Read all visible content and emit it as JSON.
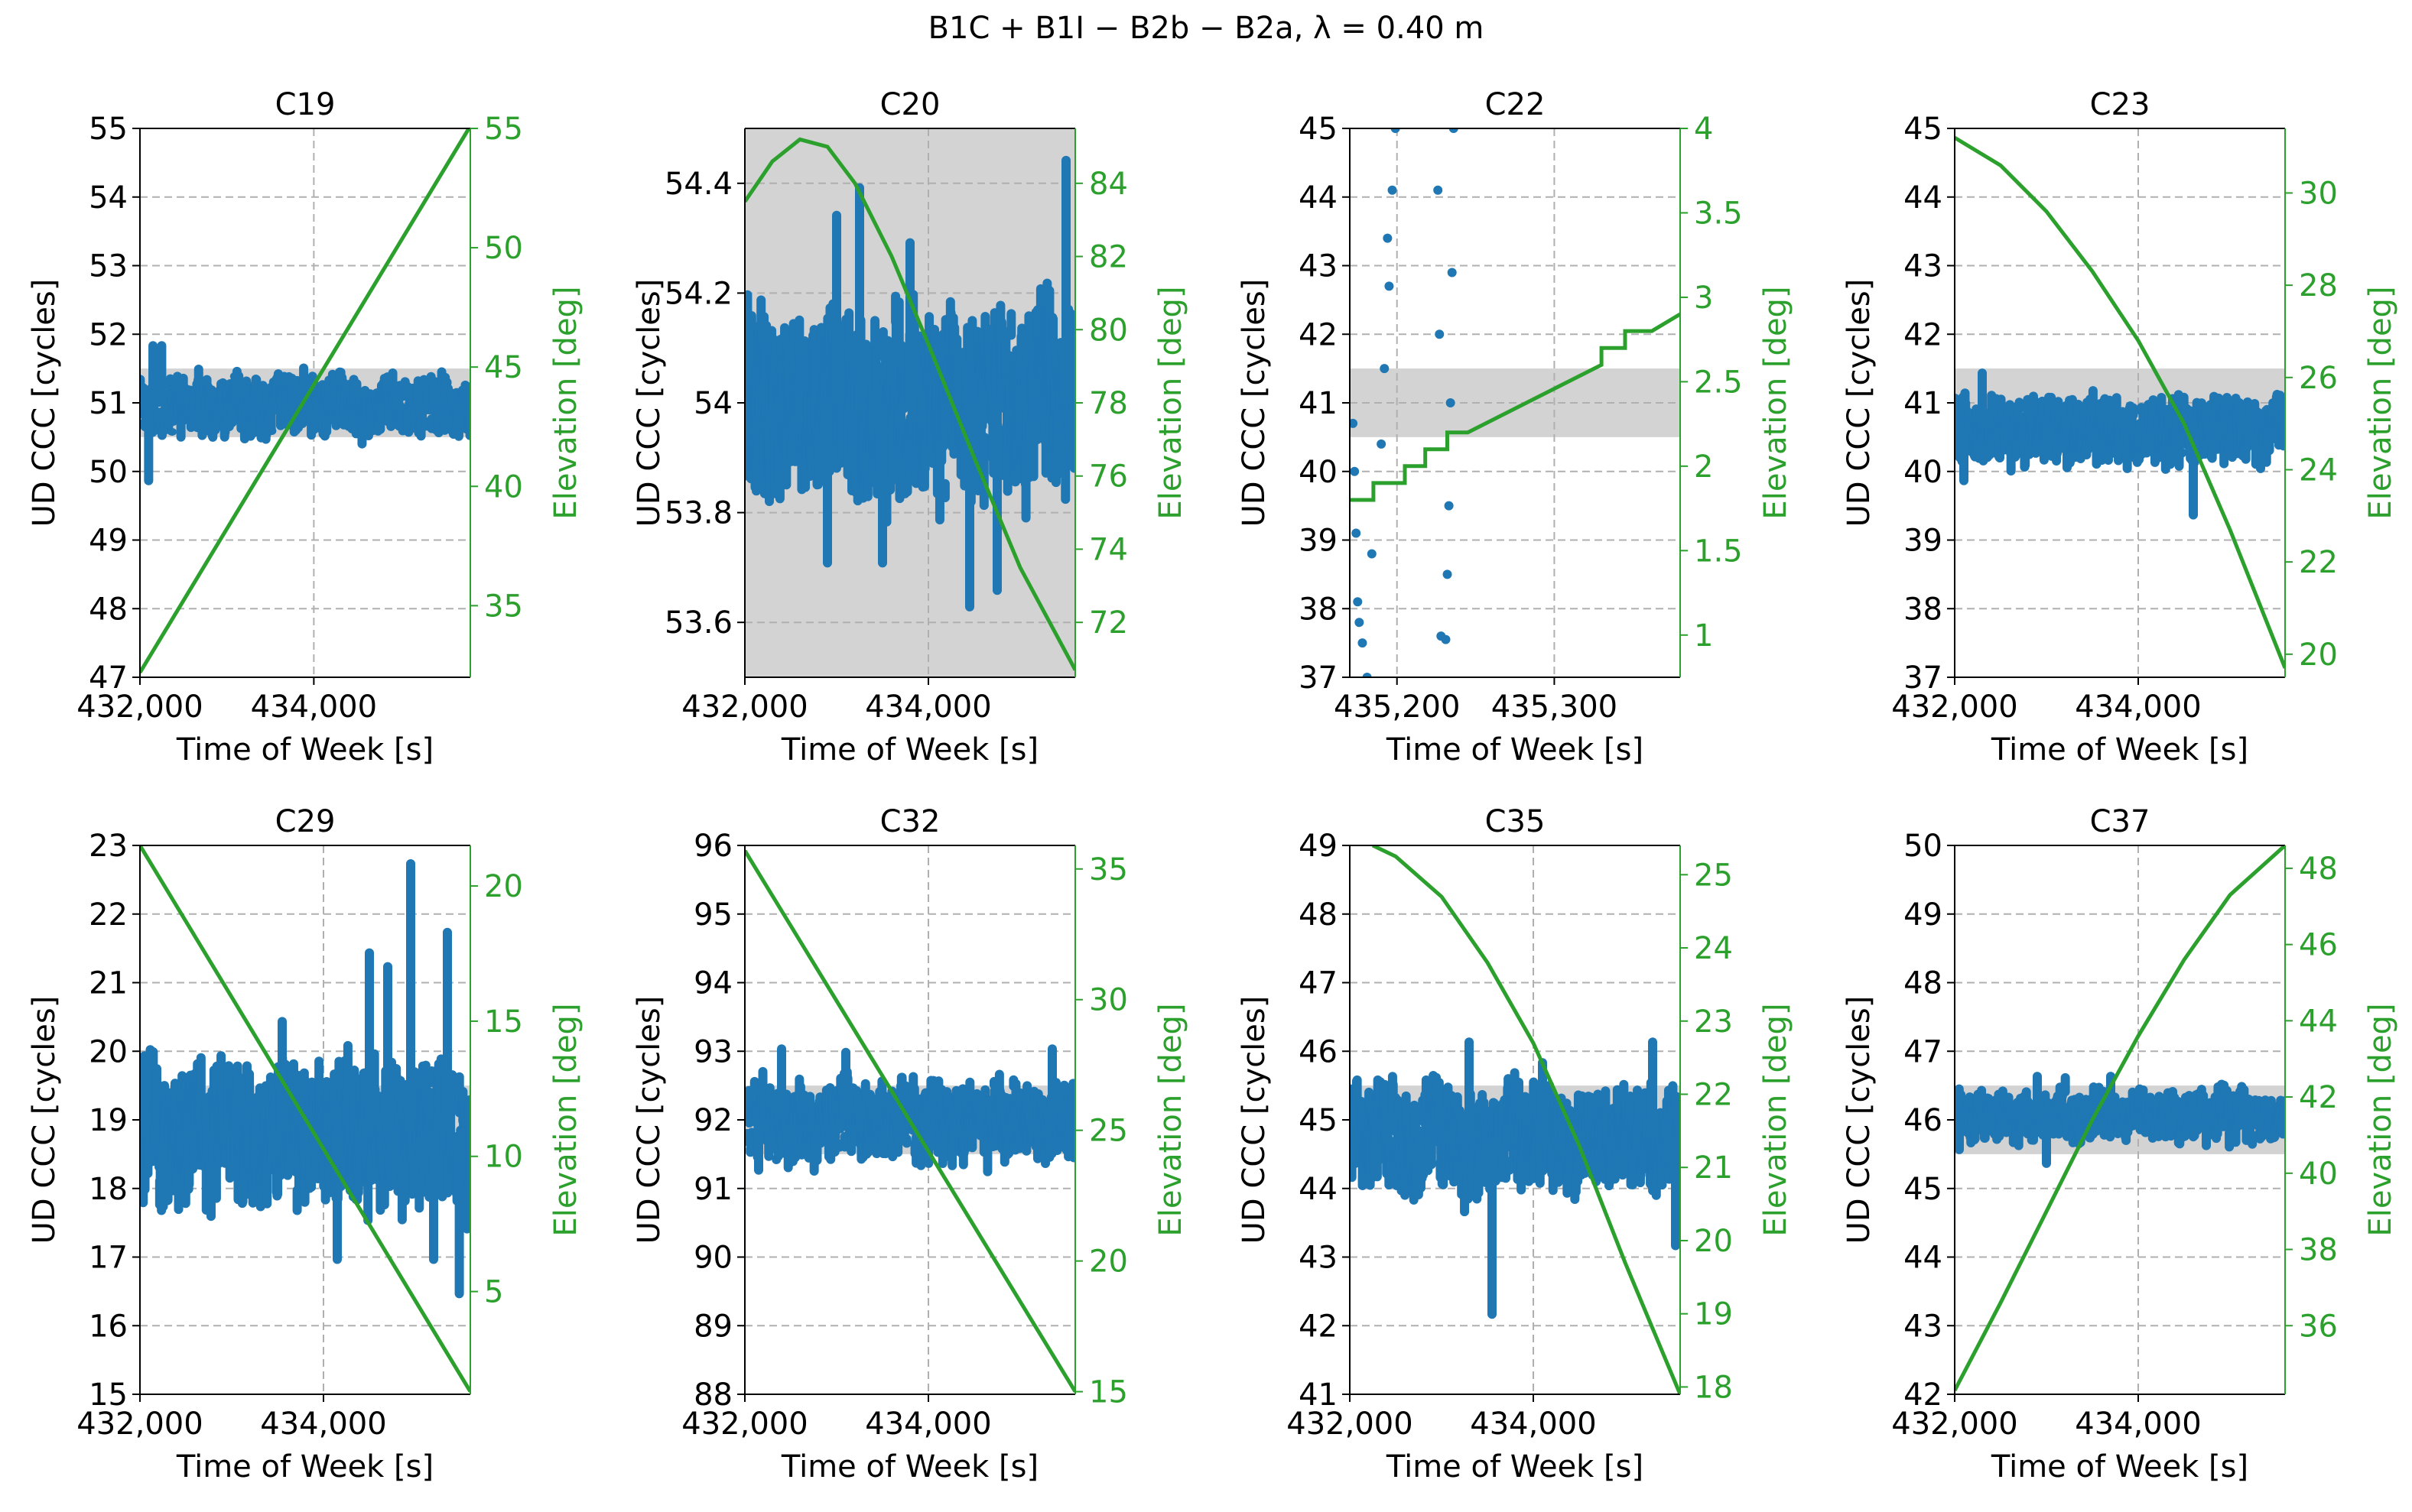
{
  "figure": {
    "suptitle": "B1C + B1I − B2b − B2a, λ = 0.40 m"
  },
  "chart_data": [
    {
      "type": "scatter+line",
      "title": "C19",
      "xlabel": "Time of Week [s]",
      "ylabel": "UD CCC [cycles]",
      "y2label": "Elevation [deg]",
      "xlim": [
        432000,
        435800
      ],
      "ylim": [
        47,
        55
      ],
      "y2lim": [
        32,
        55
      ],
      "yticks": [
        47,
        48,
        49,
        50,
        51,
        52,
        53,
        54,
        55
      ],
      "y2ticks": [
        35,
        40,
        45,
        50,
        55
      ],
      "xticks": [
        432000,
        434000
      ],
      "xticklabels": [
        "432,000",
        "434,000"
      ],
      "shade_band": [
        50.5,
        51.5
      ],
      "ccc": {
        "kind": "dense",
        "center": 50.95,
        "amplitude": 0.35,
        "spikes": [
          [
            432100,
            49.8
          ],
          [
            432150,
            51.9
          ],
          [
            432250,
            51.9
          ]
        ]
      },
      "elevation": [
        [
          432000,
          32.2
        ],
        [
          435800,
          55.1
        ]
      ]
    },
    {
      "type": "scatter+line",
      "title": "C20",
      "xlabel": "Time of Week [s]",
      "ylabel": "UD CCC [cycles]",
      "y2label": "Elevation [deg]",
      "xlim": [
        432000,
        435600
      ],
      "ylim": [
        53.5,
        54.5
      ],
      "y2lim": [
        70.5,
        85.5
      ],
      "yticks": [
        53.6,
        53.8,
        54.0,
        54.2,
        54.4
      ],
      "y2ticks": [
        72,
        74,
        76,
        78,
        80,
        82,
        84
      ],
      "xticks": [
        432000,
        434000
      ],
      "xticklabels": [
        "432,000",
        "434,000"
      ],
      "shade_band": [
        53.5,
        54.5
      ],
      "ccc": {
        "kind": "dense",
        "center": 54.0,
        "amplitude": 0.13,
        "spikes": [
          [
            432900,
            53.7
          ],
          [
            433000,
            54.35
          ],
          [
            433250,
            54.4
          ],
          [
            433500,
            53.7
          ],
          [
            433800,
            54.3
          ],
          [
            434450,
            53.62
          ],
          [
            434750,
            53.65
          ],
          [
            435500,
            54.45
          ]
        ]
      },
      "elevation": [
        [
          432000,
          83.5
        ],
        [
          432300,
          84.6
        ],
        [
          432600,
          85.2
        ],
        [
          432900,
          85.0
        ],
        [
          433200,
          84.0
        ],
        [
          433600,
          82.0
        ],
        [
          434000,
          79.6
        ],
        [
          434500,
          76.5
        ],
        [
          435000,
          73.5
        ],
        [
          435600,
          70.7
        ]
      ]
    },
    {
      "type": "scatter+line",
      "title": "C22",
      "xlabel": "Time of Week [s]",
      "ylabel": "UD CCC [cycles]",
      "y2label": "Elevation [deg]",
      "xlim": [
        435170,
        435380
      ],
      "ylim": [
        37,
        45
      ],
      "y2lim": [
        0.75,
        4.0
      ],
      "yticks": [
        37,
        38,
        39,
        40,
        41,
        42,
        43,
        44,
        45
      ],
      "y2ticks": [
        1.0,
        1.5,
        2.0,
        2.5,
        3.0,
        3.5,
        4.0
      ],
      "xticks": [
        435200,
        435300
      ],
      "xticklabels": [
        "435,200",
        "435,300"
      ],
      "shade_band": [
        40.5,
        41.5
      ],
      "ccc": {
        "kind": "sparse",
        "points": [
          [
            435172,
            40.7
          ],
          [
            435173,
            40.0
          ],
          [
            435174,
            39.1
          ],
          [
            435175,
            38.1
          ],
          [
            435176,
            37.8
          ],
          [
            435178,
            37.5
          ],
          [
            435181,
            37.0
          ],
          [
            435184,
            38.8
          ],
          [
            435190,
            40.4
          ],
          [
            435192,
            41.5
          ],
          [
            435194,
            43.4
          ],
          [
            435195,
            42.7
          ],
          [
            435197,
            44.1
          ],
          [
            435199,
            45.0
          ],
          [
            435226,
            44.1
          ],
          [
            435227,
            42.0
          ],
          [
            435228,
            37.6
          ],
          [
            435231,
            37.55
          ],
          [
            435232,
            38.5
          ],
          [
            435233,
            39.5
          ],
          [
            435234,
            41.0
          ],
          [
            435235,
            42.9
          ],
          [
            435236,
            45.0
          ]
        ]
      },
      "elevation": [
        [
          435170,
          1.8
        ],
        [
          435185,
          1.8
        ],
        [
          435185,
          1.9
        ],
        [
          435205,
          1.9
        ],
        [
          435205,
          2.0
        ],
        [
          435218,
          2.0
        ],
        [
          435218,
          2.1
        ],
        [
          435232,
          2.1
        ],
        [
          435232,
          2.2
        ],
        [
          435245,
          2.2
        ],
        [
          435330,
          2.6
        ],
        [
          435330,
          2.7
        ],
        [
          435345,
          2.7
        ],
        [
          435345,
          2.8
        ],
        [
          435362,
          2.8
        ],
        [
          435380,
          2.9
        ]
      ]
    },
    {
      "type": "scatter+line",
      "title": "C23",
      "xlabel": "Time of Week [s]",
      "ylabel": "UD CCC [cycles]",
      "y2label": "Elevation [deg]",
      "xlim": [
        432000,
        435600
      ],
      "ylim": [
        37,
        45
      ],
      "y2lim": [
        19.5,
        31.4
      ],
      "yticks": [
        37,
        38,
        39,
        40,
        41,
        42,
        43,
        44,
        45
      ],
      "y2ticks": [
        20,
        22,
        24,
        26,
        28,
        30
      ],
      "xticks": [
        432000,
        434000
      ],
      "xticklabels": [
        "432,000",
        "434,000"
      ],
      "shade_band": [
        40.5,
        41.5
      ],
      "ccc": {
        "kind": "dense",
        "center": 40.6,
        "amplitude": 0.4,
        "spikes": [
          [
            432100,
            39.8
          ],
          [
            432300,
            41.5
          ],
          [
            434600,
            39.3
          ]
        ]
      },
      "elevation": [
        [
          432000,
          31.2
        ],
        [
          432500,
          30.6
        ],
        [
          433000,
          29.6
        ],
        [
          433500,
          28.3
        ],
        [
          434000,
          26.8
        ],
        [
          434500,
          25.0
        ],
        [
          435000,
          22.7
        ],
        [
          435600,
          19.7
        ]
      ]
    },
    {
      "type": "scatter+line",
      "title": "C29",
      "xlabel": "Time of Week [s]",
      "ylabel": "UD CCC [cycles]",
      "y2label": "Elevation [deg]",
      "xlim": [
        432000,
        435600
      ],
      "ylim": [
        15,
        23
      ],
      "y2lim": [
        1.2,
        21.5
      ],
      "yticks": [
        15,
        16,
        17,
        18,
        19,
        20,
        21,
        22,
        23
      ],
      "y2ticks": [
        5,
        10,
        15,
        20
      ],
      "xticks": [
        432000,
        434000
      ],
      "xticklabels": [
        "432,000",
        "434,000"
      ],
      "shade_band": [
        18.5,
        19.5
      ],
      "ccc": {
        "kind": "dense",
        "center": 18.8,
        "amplitude": 0.8,
        "spikes": [
          [
            432050,
            20.0
          ],
          [
            433550,
            20.5
          ],
          [
            434150,
            16.9
          ],
          [
            434500,
            21.5
          ],
          [
            434700,
            21.3
          ],
          [
            434950,
            22.8
          ],
          [
            435200,
            16.9
          ],
          [
            435350,
            21.8
          ],
          [
            435480,
            16.4
          ]
        ]
      },
      "elevation": [
        [
          432000,
          21.5
        ],
        [
          435600,
          1.3
        ]
      ]
    },
    {
      "type": "scatter+line",
      "title": "C32",
      "xlabel": "Time of Week [s]",
      "ylabel": "UD CCC [cycles]",
      "y2label": "Elevation [deg]",
      "xlim": [
        432000,
        435600
      ],
      "ylim": [
        88,
        96
      ],
      "y2lim": [
        14.9,
        35.9
      ],
      "yticks": [
        88,
        89,
        90,
        91,
        92,
        93,
        94,
        95,
        96
      ],
      "y2ticks": [
        15,
        20,
        25,
        30,
        35
      ],
      "xticks": [
        432000,
        434000
      ],
      "xticklabels": [
        "432,000",
        "434,000"
      ],
      "shade_band": [
        91.5,
        92.5
      ],
      "ccc": {
        "kind": "dense",
        "center": 92.0,
        "amplitude": 0.45,
        "spikes": [
          [
            432150,
            91.2
          ],
          [
            432400,
            93.1
          ],
          [
            433100,
            93.05
          ],
          [
            435350,
            93.1
          ]
        ]
      },
      "elevation": [
        [
          432000,
          35.7
        ],
        [
          435600,
          15.0
        ]
      ]
    },
    {
      "type": "scatter+line",
      "title": "C35",
      "xlabel": "Time of Week [s]",
      "ylabel": "UD CCC [cycles]",
      "y2label": "Elevation [deg]",
      "xlim": [
        432000,
        435600
      ],
      "ylim": [
        41,
        49
      ],
      "y2lim": [
        17.9,
        25.4
      ],
      "yticks": [
        41,
        42,
        43,
        44,
        45,
        46,
        47,
        48,
        49
      ],
      "y2ticks": [
        18,
        19,
        20,
        21,
        22,
        23,
        24,
        25
      ],
      "xticks": [
        432000,
        434000
      ],
      "xticklabels": [
        "432,000",
        "434,000"
      ],
      "shade_band": [
        44.5,
        45.5
      ],
      "ccc": {
        "kind": "dense",
        "center": 44.7,
        "amplitude": 0.6,
        "spikes": [
          [
            433300,
            46.2
          ],
          [
            433550,
            42.1
          ],
          [
            434100,
            45.9
          ],
          [
            435300,
            46.2
          ],
          [
            435550,
            43.1
          ]
        ]
      },
      "elevation": [
        [
          432250,
          25.4
        ],
        [
          432500,
          25.25
        ],
        [
          433000,
          24.7
        ],
        [
          433500,
          23.8
        ],
        [
          434000,
          22.7
        ],
        [
          434500,
          21.3
        ],
        [
          435000,
          19.7
        ],
        [
          435600,
          17.9
        ]
      ]
    },
    {
      "type": "scatter+line",
      "title": "C37",
      "xlabel": "Time of Week [s]",
      "ylabel": "UD CCC [cycles]",
      "y2label": "Elevation [deg]",
      "xlim": [
        432000,
        435600
      ],
      "ylim": [
        42,
        50
      ],
      "y2lim": [
        34.2,
        48.6
      ],
      "yticks": [
        42,
        43,
        44,
        45,
        46,
        47,
        48,
        49,
        50
      ],
      "y2ticks": [
        36,
        38,
        40,
        42,
        44,
        46,
        48
      ],
      "xticks": [
        432000,
        434000
      ],
      "xticklabels": [
        "432,000",
        "434,000"
      ],
      "shade_band": [
        45.5,
        46.5
      ],
      "ccc": {
        "kind": "dense",
        "center": 46.05,
        "amplitude": 0.3,
        "spikes": [
          [
            432050,
            45.5
          ],
          [
            432900,
            46.7
          ],
          [
            433000,
            45.3
          ],
          [
            433700,
            46.7
          ]
        ]
      },
      "elevation": [
        [
          432000,
          34.3
        ],
        [
          432500,
          36.6
        ],
        [
          433000,
          39.0
        ],
        [
          433500,
          41.4
        ],
        [
          434000,
          43.6
        ],
        [
          434500,
          45.6
        ],
        [
          435000,
          47.3
        ],
        [
          435600,
          48.6
        ]
      ]
    }
  ]
}
